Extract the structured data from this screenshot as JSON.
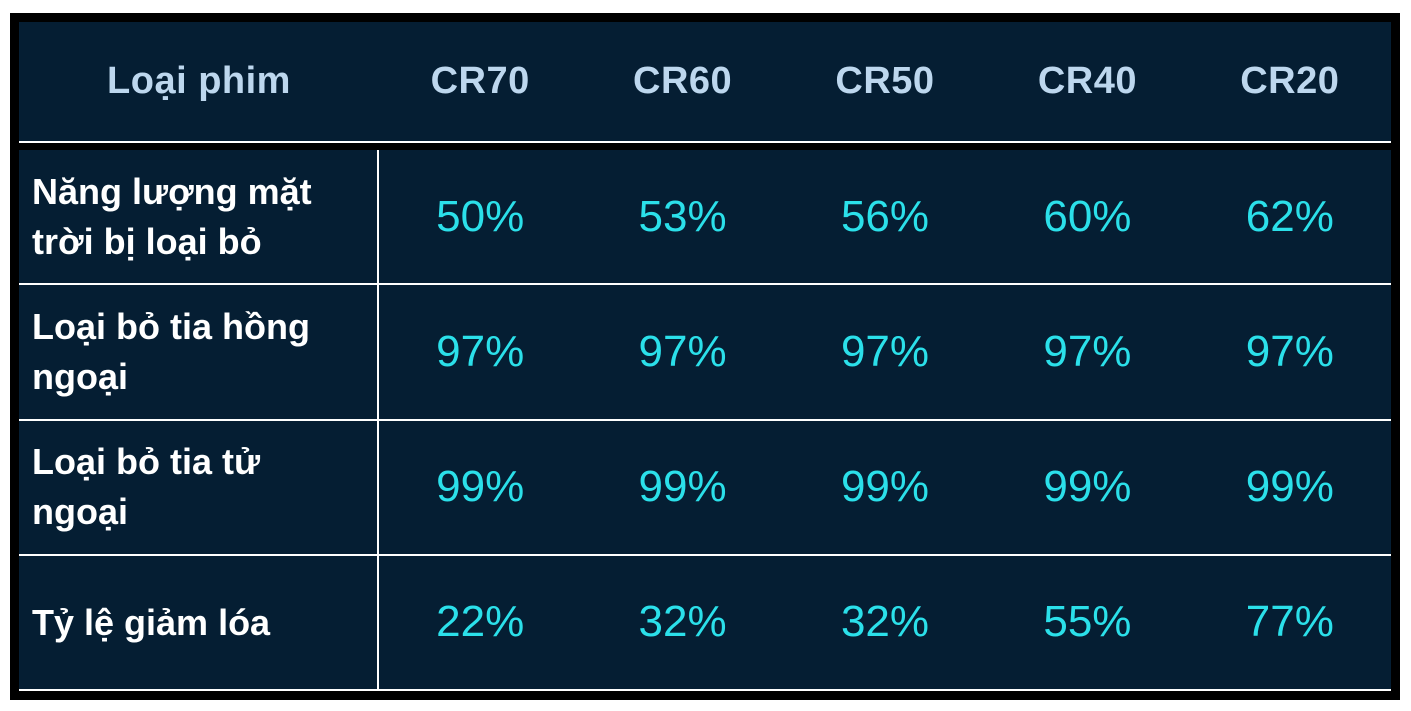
{
  "table": {
    "header": {
      "label_col": "Loại phim",
      "columns": [
        "CR70",
        "CR60",
        "CR50",
        "CR40",
        "CR20"
      ]
    },
    "rows": [
      {
        "label": "Năng lượng mặt trời bị loại bỏ",
        "values": [
          "50%",
          "53%",
          "56%",
          "60%",
          "62%"
        ]
      },
      {
        "label": "Loại bỏ tia hồng ngoại",
        "values": [
          "97%",
          "97%",
          "97%",
          "97%",
          "97%"
        ]
      },
      {
        "label": "Loại bỏ tia tử ngoại",
        "values": [
          "99%",
          "99%",
          "99%",
          "99%",
          "99%"
        ]
      },
      {
        "label": "Tỷ lệ giảm lóa",
        "values": [
          "22%",
          "32%",
          "32%",
          "55%",
          "77%"
        ]
      }
    ],
    "colors": {
      "background": "#051e33",
      "outer_border": "#000000",
      "divider": "#ffffff",
      "header_text": "#bdd7ee",
      "row_label_text": "#ffffff",
      "value_text": "#2be0ea"
    }
  },
  "chart_data": {
    "type": "table",
    "title": "",
    "columns": [
      "Loại phim",
      "CR70",
      "CR60",
      "CR50",
      "CR40",
      "CR20"
    ],
    "rows": [
      [
        "Năng lượng mặt trời bị loại bỏ",
        "50%",
        "53%",
        "56%",
        "60%",
        "62%"
      ],
      [
        "Loại bỏ tia hồng ngoại",
        "97%",
        "97%",
        "97%",
        "97%",
        "97%"
      ],
      [
        "Loại bỏ tia tử ngoại",
        "99%",
        "99%",
        "99%",
        "99%",
        "99%"
      ],
      [
        "Tỷ lệ giảm lóa",
        "22%",
        "32%",
        "32%",
        "55%",
        "77%"
      ]
    ]
  }
}
